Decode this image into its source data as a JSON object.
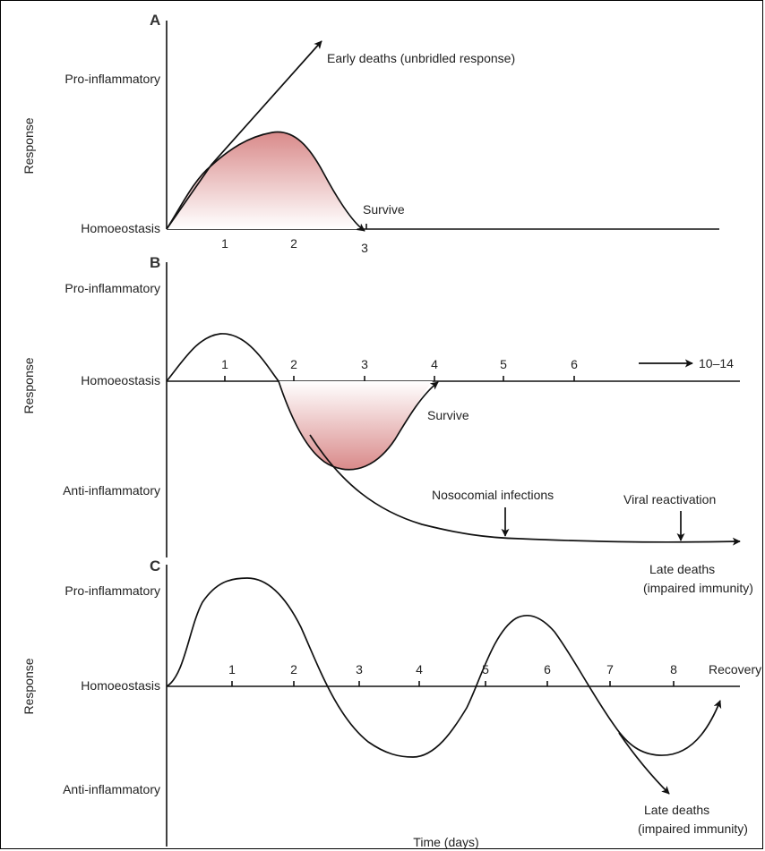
{
  "panels": {
    "a": {
      "letter": "A",
      "y_label": "Response",
      "levels": {
        "pro": "Pro-inflammatory",
        "homeo": "Homoeostasis"
      },
      "ticks": [
        "1",
        "2",
        "3"
      ],
      "annotations": {
        "early_deaths": "Early deaths (unbridled response)",
        "survive": "Survive"
      }
    },
    "b": {
      "letter": "B",
      "y_label": "Response",
      "levels": {
        "pro": "Pro-inflammatory",
        "homeo": "Homoeostasis",
        "anti": "Anti-inflammatory"
      },
      "ticks": [
        "1",
        "2",
        "3",
        "4",
        "5",
        "6"
      ],
      "range_label": "10–14",
      "annotations": {
        "survive": "Survive",
        "nosocomial": "Nosocomial infections",
        "viral": "Viral reactivation",
        "late_deaths_1": "Late deaths",
        "late_deaths_2": "(impaired immunity)"
      }
    },
    "c": {
      "letter": "C",
      "y_label": "Response",
      "levels": {
        "pro": "Pro-inflammatory",
        "homeo": "Homoeostasis",
        "anti": "Anti-inflammatory"
      },
      "ticks": [
        "1",
        "2",
        "3",
        "4",
        "5",
        "6",
        "7",
        "8"
      ],
      "recovery": "Recovery",
      "annotations": {
        "late_deaths_1": "Late deaths",
        "late_deaths_2": "(impaired immunity)"
      },
      "x_label": "Time (days)"
    }
  },
  "colors": {
    "fill_top": "#d98a8a",
    "fill_bottom": "#ffffff",
    "line": "#111111"
  }
}
